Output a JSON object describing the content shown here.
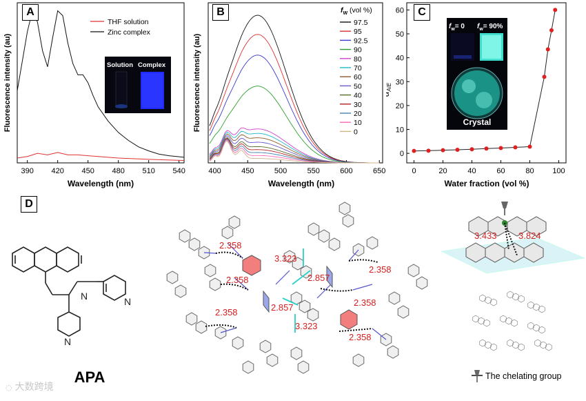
{
  "panels": {
    "a": {
      "label": "A",
      "ylabel": "Fluorescence intensity (au)",
      "xlabel": "Wavelength (nm)",
      "xticks": [
        "390",
        "420",
        "450",
        "480",
        "510",
        "540"
      ],
      "legend": [
        "THF solution",
        "Zinc complex"
      ],
      "inset": {
        "left": "Solution",
        "right": "Complex"
      }
    },
    "b": {
      "label": "B",
      "ylabel": "Fluorescence intensity (au)",
      "xlabel": "Wavelength (nm)",
      "xticks": [
        "400",
        "450",
        "500",
        "550",
        "600",
        "650"
      ],
      "legend_title_f": "f",
      "legend_title_sub": "W",
      "legend_title_rest": " (vol %)"
    },
    "c": {
      "label": "C",
      "ylabel_main": "α",
      "ylabel_sub": "AIE",
      "xlabel": "Water fraction (vol %)",
      "xticks": [
        "0",
        "20",
        "40",
        "60",
        "80",
        "100"
      ],
      "yticks": [
        "0",
        "10",
        "20",
        "30",
        "40",
        "50",
        "60"
      ],
      "inset_top_a": "f",
      "inset_top_a_sub": "w",
      "inset_top_a_val": "= 0",
      "inset_top_b": "f",
      "inset_top_b_sub": "w",
      "inset_top_b_val": "= 90%",
      "inset_crystal": "Crystal"
    },
    "d": {
      "label": "D",
      "compound": "APA",
      "distances": [
        "2.358",
        "2.358",
        "2.358",
        "2.358",
        "2.358",
        "2.358",
        "3.323",
        "3.323",
        "2.857",
        "2.857"
      ],
      "right_distances": [
        "3.433",
        "3.824"
      ],
      "legend": "The chelating group"
    }
  },
  "watermark": "大数跨境",
  "colors": {
    "red": "#e03030",
    "black": "#111111",
    "blue": "#3333cc",
    "green": "#2aa02a",
    "dist": "#d42020"
  },
  "chart_data": [
    {
      "type": "line",
      "title": "",
      "xlabel": "Wavelength (nm)",
      "ylabel": "Fluorescence intensity (au)",
      "xlim": [
        380,
        545
      ],
      "legend_position": "top-right",
      "series": [
        {
          "name": "THF solution",
          "x": [
            380,
            390,
            400,
            410,
            420,
            430,
            440,
            450,
            460,
            480,
            500,
            520,
            545
          ],
          "y": [
            0.03,
            0.04,
            0.06,
            0.05,
            0.065,
            0.05,
            0.05,
            0.045,
            0.04,
            0.03,
            0.025,
            0.02,
            0.015
          ]
        },
        {
          "name": "Zinc complex",
          "x": [
            380,
            390,
            395,
            400,
            405,
            410,
            415,
            420,
            425,
            430,
            435,
            440,
            445,
            450,
            455,
            460,
            470,
            480,
            490,
            500,
            510,
            520,
            530,
            545
          ],
          "y": [
            0.45,
            0.82,
            0.95,
            0.88,
            0.7,
            0.6,
            0.78,
            0.95,
            0.92,
            0.75,
            0.62,
            0.55,
            0.55,
            0.5,
            0.42,
            0.35,
            0.26,
            0.19,
            0.14,
            0.1,
            0.075,
            0.055,
            0.045,
            0.035
          ]
        }
      ]
    },
    {
      "type": "line",
      "title": "",
      "xlabel": "Wavelength (nm)",
      "ylabel": "Fluorescence intensity (au)",
      "xlim": [
        390,
        655
      ],
      "legend_position": "right",
      "legend_title": "fW (vol %)",
      "series": [
        {
          "name": "97.5",
          "peak": 1.0
        },
        {
          "name": "95",
          "peak": 0.87
        },
        {
          "name": "92.5",
          "peak": 0.73
        },
        {
          "name": "90",
          "peak": 0.52
        },
        {
          "name": "80",
          "peak": 0.23
        },
        {
          "name": "70",
          "peak": 0.2
        },
        {
          "name": "60",
          "peak": 0.17
        },
        {
          "name": "50",
          "peak": 0.14
        },
        {
          "name": "40",
          "peak": 0.11
        },
        {
          "name": "30",
          "peak": 0.09
        },
        {
          "name": "20",
          "peak": 0.07
        },
        {
          "name": "10",
          "peak": 0.05
        },
        {
          "name": "0",
          "peak": 0.03
        }
      ]
    },
    {
      "type": "line",
      "title": "",
      "xlabel": "Water fraction (vol %)",
      "ylabel": "αAIE",
      "xlim": [
        -5,
        105
      ],
      "ylim": [
        -4,
        63
      ],
      "x": [
        0,
        10,
        20,
        30,
        40,
        50,
        60,
        70,
        80,
        90,
        92.5,
        95,
        97.5
      ],
      "y": [
        1,
        1.1,
        1.3,
        1.5,
        1.7,
        2,
        2.2,
        2.5,
        2.8,
        32,
        43.5,
        51.5,
        60
      ]
    }
  ]
}
